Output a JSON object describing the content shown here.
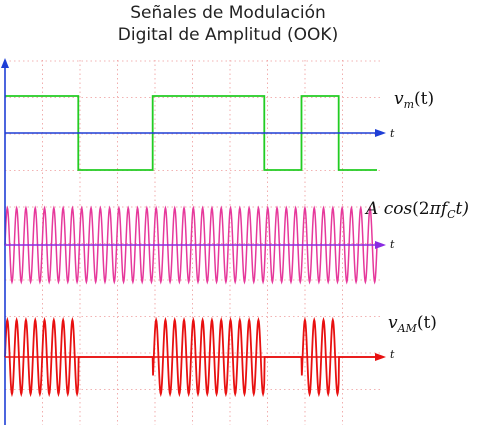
{
  "title_line1": "Señales de Modulación",
  "title_line2": "Digital de Amplitud (OOK)",
  "colors": {
    "grid": "#ee9a9a",
    "axis": "#1f3fd6",
    "message": "#22cc22",
    "carrier": "#e6399b",
    "carrier_axis": "#8a2be2",
    "modulated": "#e81010"
  },
  "panels": {
    "message": {
      "label_main": "v",
      "label_sub": "m",
      "label_arg": "(t)",
      "axis_label": "t",
      "bits": [
        1,
        0,
        1,
        0,
        1,
        0
      ],
      "bit_edges": [
        0,
        0.197,
        0.397,
        0.697,
        0.797,
        0.897,
        1.0
      ]
    },
    "carrier": {
      "label_A": "A",
      "label_cos": "cos",
      "label_arg_open": "(2",
      "label_pi": "π",
      "label_f": "f",
      "label_f_sub": "C",
      "label_arg_close": "t)",
      "axis_label": "t",
      "cycles": 40
    },
    "modulated": {
      "label_main": "v",
      "label_sub": "AM",
      "label_arg": "(t)",
      "axis_label": "t"
    }
  }
}
